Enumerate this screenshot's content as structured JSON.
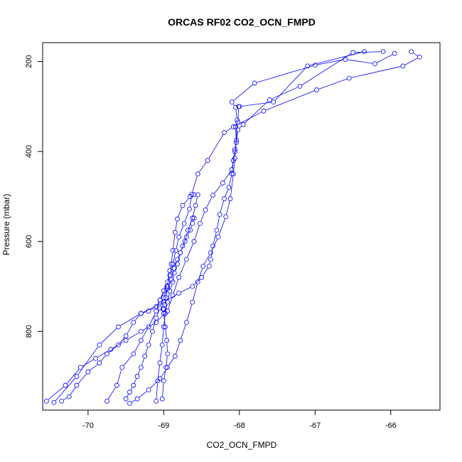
{
  "chart_data": {
    "type": "line",
    "title": "ORCAS RF02 CO2_OCN_FMPD",
    "xlabel": "CO2_OCN_FMPD",
    "ylabel": "Pressure (mbar)",
    "xlim": [
      -70.6,
      -65.35
    ],
    "ylim": [
      975,
      158
    ],
    "y_reversed": true,
    "x_ticks": [
      -70,
      -69,
      -68,
      -67,
      -66
    ],
    "x_tick_labels": [
      "-70",
      "-69",
      "-68",
      "-67",
      "-66"
    ],
    "y_ticks": [
      200,
      400,
      600,
      800
    ],
    "y_tick_labels": [
      "200",
      "400",
      "600",
      "800"
    ],
    "grid": false,
    "legend": "none",
    "colors": {
      "series": "#0000ff",
      "frame": "#000000"
    },
    "series": [
      {
        "marker": "circle-open",
        "x": [
          -65.73,
          -65.62,
          -65.84,
          -66.55,
          -66.98,
          -67.68,
          -68.08,
          -68.2,
          -68.42,
          -68.55,
          -68.63,
          -68.66,
          -68.73,
          -68.8,
          -68.84,
          -68.88,
          -68.92,
          -68.96,
          -69.05,
          -69.1,
          -69.2,
          -69.3,
          -69.4,
          -69.55,
          -69.62,
          -69.75
        ],
        "y": [
          178,
          190,
          210,
          237,
          263,
          310,
          345,
          358,
          420,
          450,
          495,
          528,
          560,
          590,
          620,
          650,
          675,
          700,
          730,
          755,
          790,
          820,
          850,
          880,
          920,
          955
        ]
      },
      {
        "marker": "circle-open",
        "x": [
          -65.95,
          -66.21,
          -66.6,
          -67.0,
          -67.8,
          -68.1,
          -68.05,
          -68.03,
          -68.04,
          -68.06,
          -68.08,
          -68.12,
          -68.18,
          -68.28,
          -68.38,
          -68.48,
          -68.55,
          -68.62,
          -68.7,
          -68.78,
          -68.85,
          -68.95,
          -69.05,
          -69.2,
          -69.35,
          -69.45
        ],
        "y": [
          182,
          205,
          195,
          208,
          248,
          290,
          302,
          330,
          375,
          415,
          450,
          505,
          545,
          590,
          625,
          655,
          690,
          735,
          780,
          820,
          855,
          880,
          905,
          930,
          950,
          960
        ]
      },
      {
        "marker": "circle-open",
        "x": [
          -66.1,
          -66.5,
          -67.2,
          -67.6,
          -67.95,
          -68.02,
          -68.06,
          -68.1,
          -68.22,
          -68.35,
          -68.45,
          -68.52,
          -68.6,
          -68.7,
          -68.8,
          -68.88,
          -68.95,
          -69.1,
          -69.3,
          -69.5,
          -69.7,
          -69.9,
          -70.1,
          -70.3,
          -70.55
        ],
        "y": [
          178,
          180,
          255,
          285,
          340,
          352,
          400,
          440,
          470,
          497,
          530,
          560,
          600,
          640,
          680,
          720,
          755,
          780,
          800,
          820,
          840,
          860,
          880,
          920,
          955
        ]
      },
      {
        "marker": "circle-open",
        "x": [
          -66.35,
          -67.1,
          -67.55,
          -68.0,
          -68.01,
          -68.02,
          -68.05,
          -68.04,
          -68.06,
          -68.08,
          -68.1,
          -68.14,
          -68.2,
          -68.26,
          -68.3,
          -68.35,
          -68.38,
          -68.4,
          -68.5,
          -68.62,
          -68.8,
          -69.0,
          -69.3,
          -69.6,
          -69.85,
          -70.15,
          -70.45
        ],
        "y": [
          178,
          210,
          290,
          300,
          300,
          335,
          345,
          380,
          395,
          420,
          450,
          480,
          505,
          540,
          575,
          610,
          640,
          655,
          680,
          700,
          715,
          735,
          760,
          790,
          830,
          900,
          958
        ]
      },
      {
        "marker": "circle-open",
        "x": [
          -68.6,
          -68.65,
          -68.75,
          -68.82,
          -68.85,
          -68.88,
          -68.9,
          -68.92,
          -68.95,
          -69.0,
          -69.05,
          -69.1,
          -69.2,
          -69.3,
          -69.4,
          -69.5,
          -69.6,
          -69.75,
          -69.85,
          -70.0,
          -70.15,
          -70.25,
          -70.35
        ],
        "y": [
          496,
          500,
          520,
          550,
          580,
          620,
          650,
          665,
          690,
          710,
          730,
          745,
          755,
          760,
          780,
          810,
          830,
          850,
          870,
          890,
          920,
          945,
          955
        ]
      },
      {
        "marker": "circle-open",
        "x": [
          -68.6,
          -68.62,
          -68.65,
          -68.7,
          -68.75,
          -68.78,
          -68.82,
          -68.86,
          -68.9,
          -68.95,
          -69.0,
          -69.05,
          -69.1,
          -69.15,
          -69.2,
          -69.25,
          -69.3,
          -69.35,
          -69.4,
          -69.45,
          -69.5
        ],
        "y": [
          548,
          560,
          575,
          590,
          610,
          625,
          640,
          660,
          685,
          705,
          725,
          748,
          770,
          800,
          830,
          855,
          880,
          900,
          920,
          935,
          950
        ]
      },
      {
        "marker": "circle-open",
        "x": [
          -68.55,
          -68.58,
          -68.62,
          -68.68,
          -68.72,
          -68.78,
          -68.82,
          -68.86,
          -68.88,
          -68.92,
          -68.95,
          -68.98,
          -69.0,
          -69.02,
          -69.05,
          -69.08,
          -69.1
        ],
        "y": [
          496,
          520,
          548,
          575,
          600,
          625,
          650,
          670,
          690,
          710,
          735,
          760,
          790,
          830,
          870,
          910,
          955
        ]
      },
      {
        "marker": "circle-open",
        "x": [
          -68.95,
          -68.97,
          -68.99,
          -69.0,
          -69.01,
          -69.0,
          -68.98,
          -68.96,
          -68.95,
          -68.97,
          -69.0,
          -69.02
        ],
        "y": [
          700,
          725,
          740,
          750,
          750,
          760,
          790,
          820,
          850,
          880,
          910,
          950
        ]
      }
    ]
  }
}
